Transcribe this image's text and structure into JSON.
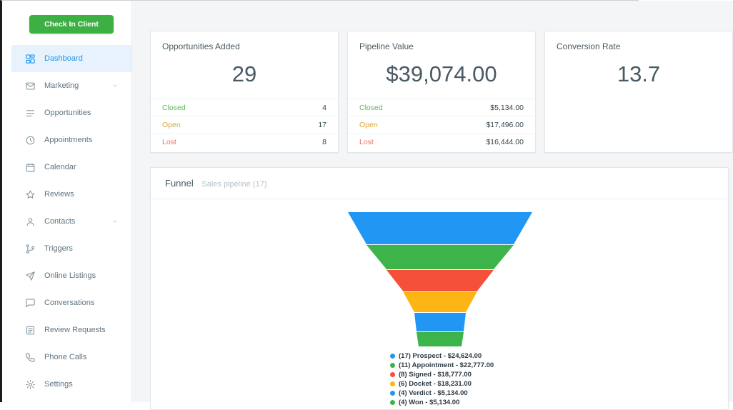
{
  "sidebar": {
    "check_in_button": "Check In Client",
    "items": [
      {
        "label": "Dashboard",
        "icon": "dashboard-icon",
        "active": true,
        "chevron": false
      },
      {
        "label": "Marketing",
        "icon": "marketing-icon",
        "active": false,
        "chevron": true
      },
      {
        "label": "Opportunities",
        "icon": "opportunities-icon",
        "active": false,
        "chevron": false
      },
      {
        "label": "Appointments",
        "icon": "appointments-icon",
        "active": false,
        "chevron": false
      },
      {
        "label": "Calendar",
        "icon": "calendar-icon",
        "active": false,
        "chevron": false
      },
      {
        "label": "Reviews",
        "icon": "reviews-icon",
        "active": false,
        "chevron": false
      },
      {
        "label": "Contacts",
        "icon": "contacts-icon",
        "active": false,
        "chevron": true
      },
      {
        "label": "Triggers",
        "icon": "triggers-icon",
        "active": false,
        "chevron": false
      },
      {
        "label": "Online Listings",
        "icon": "online-listings-icon",
        "active": false,
        "chevron": false
      },
      {
        "label": "Conversations",
        "icon": "conversations-icon",
        "active": false,
        "chevron": false
      },
      {
        "label": "Review Requests",
        "icon": "review-requests-icon",
        "active": false,
        "chevron": false
      },
      {
        "label": "Phone Calls",
        "icon": "phone-calls-icon",
        "active": false,
        "chevron": false
      },
      {
        "label": "Settings",
        "icon": "settings-icon",
        "active": false,
        "chevron": false
      }
    ]
  },
  "stats_cards": [
    {
      "title": "Opportunities Added",
      "big_value": "29",
      "rows": [
        {
          "label": "Closed",
          "value": "4",
          "color": "#5cb85c"
        },
        {
          "label": "Open",
          "value": "17",
          "color": "#dba63a"
        },
        {
          "label": "Lost",
          "value": "8",
          "color": "#e57368"
        }
      ]
    },
    {
      "title": "Pipeline Value",
      "big_value": "$39,074.00",
      "rows": [
        {
          "label": "Closed",
          "value": "$5,134.00",
          "color": "#5cb85c"
        },
        {
          "label": "Open",
          "value": "$17,496.00",
          "color": "#dba63a"
        },
        {
          "label": "Lost",
          "value": "$16,444.00",
          "color": "#e57368"
        }
      ]
    },
    {
      "title": "Conversion Rate",
      "big_value": "13.7",
      "rows": []
    }
  ],
  "funnel_card": {
    "title": "Funnel",
    "subtitle": "Sales pipeline (17)"
  },
  "chart_data": {
    "type": "funnel",
    "title": "Funnel",
    "subtitle": "Sales pipeline (17)",
    "total_in_pipeline": 17,
    "legend_position": "bottom",
    "segments": [
      {
        "label": "Prospect",
        "count": 17,
        "amount": 24624.0,
        "amount_label": "$24,624.00",
        "color": "#2196f3"
      },
      {
        "label": "Appointment",
        "count": 11,
        "amount": 22777.0,
        "amount_label": "$22,777.00",
        "color": "#3cb44a"
      },
      {
        "label": "Signed",
        "count": 8,
        "amount": 18777.0,
        "amount_label": "$18,777.00",
        "color": "#f5503a"
      },
      {
        "label": "Docket",
        "count": 6,
        "amount": 18231.0,
        "amount_label": "$18,231.00",
        "color": "#fcb515"
      },
      {
        "label": "Verdict",
        "count": 4,
        "amount": 5134.0,
        "amount_label": "$5,134.00",
        "color": "#2196f3"
      },
      {
        "label": "Won",
        "count": 4,
        "amount": 5134.0,
        "amount_label": "$5,134.00",
        "color": "#3cb44a"
      }
    ]
  }
}
